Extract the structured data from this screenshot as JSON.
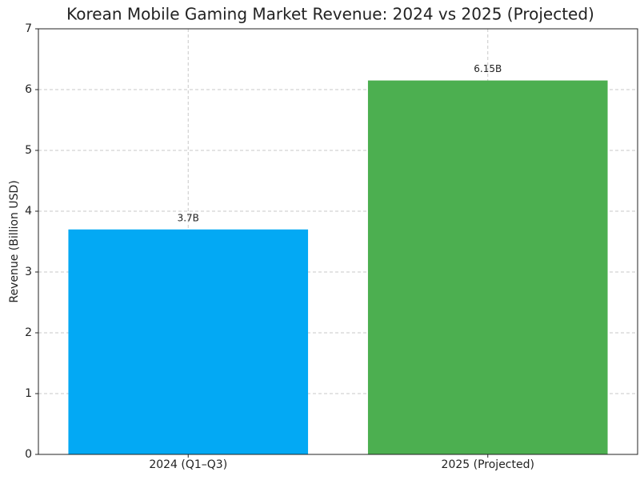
{
  "chart_data": {
    "type": "bar",
    "title": "Korean Mobile Gaming Market Revenue: 2024 vs 2025 (Projected)",
    "y_label": "Revenue (Billion USD)",
    "categories": [
      "2024 (Q1–Q3)",
      "2025 (Projected)"
    ],
    "values": [
      3.7,
      6.15
    ],
    "value_labels": [
      "3.7B",
      "6.15B"
    ],
    "colors": [
      "#03a9f4",
      "#4caf50"
    ],
    "ylim": [
      0,
      7
    ],
    "yticks": [
      0,
      1,
      2,
      3,
      4,
      5,
      6,
      7
    ],
    "grid": true
  }
}
